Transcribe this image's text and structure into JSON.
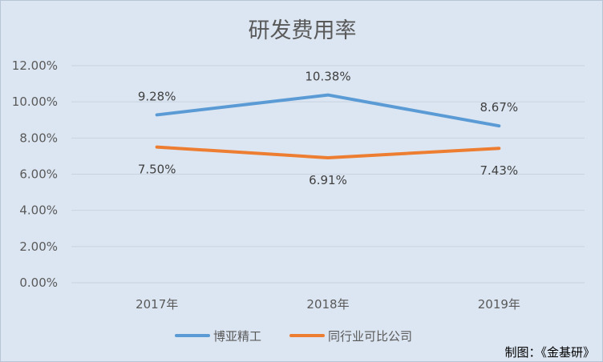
{
  "chart_data": {
    "type": "line",
    "title": "研发费用率",
    "categories": [
      "2017年",
      "2018年",
      "2019年"
    ],
    "series": [
      {
        "name": "博亚精工",
        "values": [
          9.28,
          10.38,
          8.67
        ],
        "labels": [
          "9.28%",
          "10.38%",
          "8.67%"
        ],
        "color": "#5b9bd5"
      },
      {
        "name": "同行业可比公司",
        "values": [
          7.5,
          6.91,
          7.43
        ],
        "labels": [
          "7.50%",
          "6.91%",
          "7.43%"
        ],
        "color": "#ed7d31"
      }
    ],
    "ylim": [
      0,
      12
    ],
    "yticks": [
      0,
      2,
      4,
      6,
      8,
      10,
      12
    ],
    "ytick_labels": [
      "0.00%",
      "2.00%",
      "4.00%",
      "6.00%",
      "8.00%",
      "10.00%",
      "12.00%"
    ],
    "grid": true,
    "legend_position": "bottom",
    "xlabel": "",
    "ylabel": ""
  },
  "credit": "制图：《金基研》",
  "colors": {
    "background": "#dce6f2",
    "gridline": "#c9d3df",
    "text": "#595959"
  }
}
